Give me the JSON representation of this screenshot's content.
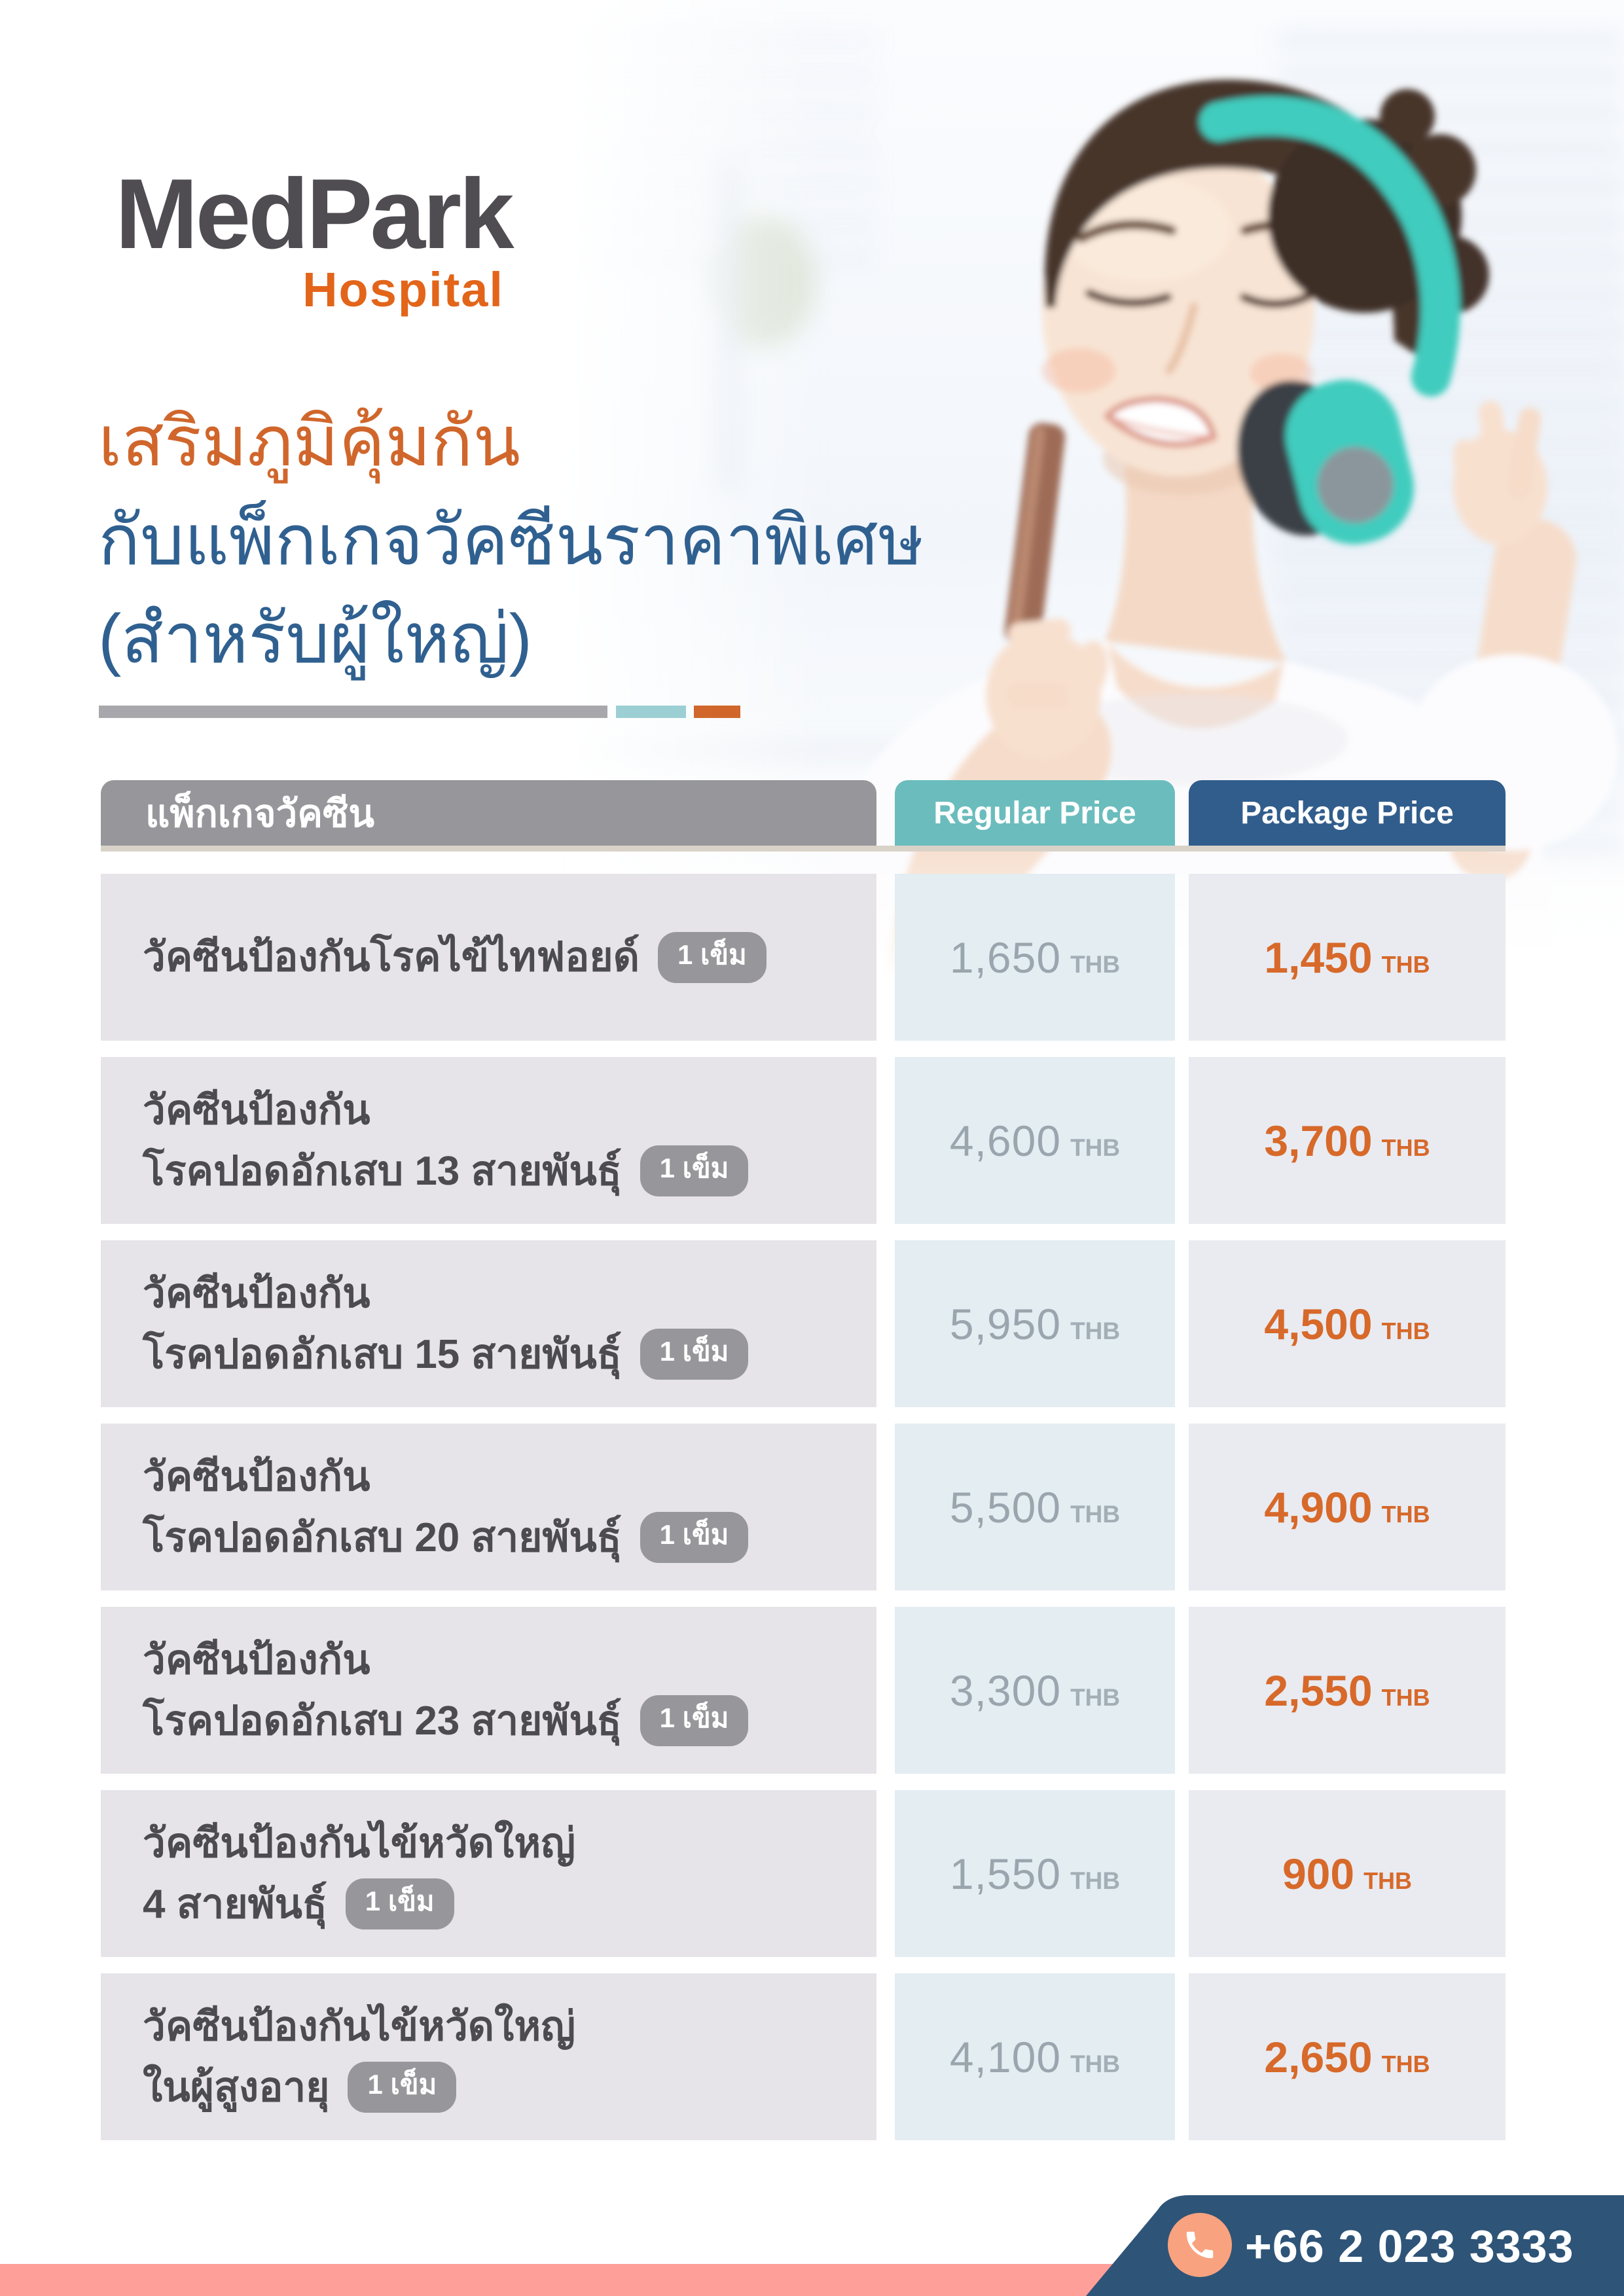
{
  "brand": {
    "name": "MedPark",
    "subtitle": "Hospital"
  },
  "hero": {
    "photo_alt": "smiling-woman-with-teal-headphones-photo"
  },
  "title": {
    "line1": "เสริมภูมิคุ้มกัน",
    "line2": "กับแพ็กเกจวัคซีนราคาพิเศษ",
    "line3": "(สำหรับผู้ใหญ่)"
  },
  "table": {
    "header": {
      "package": "แพ็กเกจวัคซีน",
      "regular": "Regular Price",
      "package_price": "Package Price"
    },
    "currency": "THB",
    "rows": [
      {
        "name_lines": [
          "วัคซีนป้องกันโรคไข้ไทฟอยด์"
        ],
        "badge": "1 เข็ม",
        "regular": "1,650",
        "package": "1,450"
      },
      {
        "name_lines": [
          "วัคซีนป้องกัน",
          "โรคปอดอักเสบ 13 สายพันธุ์"
        ],
        "badge": "1 เข็ม",
        "regular": "4,600",
        "package": "3,700"
      },
      {
        "name_lines": [
          "วัคซีนป้องกัน",
          "โรคปอดอักเสบ 15 สายพันธุ์"
        ],
        "badge": "1 เข็ม",
        "regular": "5,950",
        "package": "4,500"
      },
      {
        "name_lines": [
          "วัคซีนป้องกัน",
          "โรคปอดอักเสบ 20 สายพันธุ์"
        ],
        "badge": "1 เข็ม",
        "regular": "5,500",
        "package": "4,900"
      },
      {
        "name_lines": [
          "วัคซีนป้องกัน",
          "โรคปอดอักเสบ 23 สายพันธุ์"
        ],
        "badge": "1 เข็ม",
        "regular": "3,300",
        "package": "2,550"
      },
      {
        "name_lines": [
          "วัคซีนป้องกันไข้หวัดใหญ่",
          "4 สายพันธุ์"
        ],
        "badge": "1 เข็ม",
        "regular": "1,550",
        "package": "900"
      },
      {
        "name_lines": [
          "วัคซีนป้องกันไข้หวัดใหญ่",
          "ในผู้สูงอายุ"
        ],
        "badge": "1 เข็ม",
        "regular": "4,100",
        "package": "2,650"
      }
    ]
  },
  "footer": {
    "phone": "+66 2 023 3333",
    "phone_icon": "phone-handset-icon"
  },
  "colors": {
    "accent_orange": "#d0662b",
    "brand_orange": "#e2651a",
    "title_blue": "#2f6090",
    "header_gray": "#97969b",
    "header_teal": "#6bbcbd",
    "header_blue": "#315d8c",
    "regular_text": "#9aa5ae",
    "package_text": "#d7692a",
    "footer_pink": "#ff9f99",
    "footer_blue": "#2e5478",
    "phone_circle": "#f8a27f",
    "headphone_teal": "#3fccbe"
  }
}
